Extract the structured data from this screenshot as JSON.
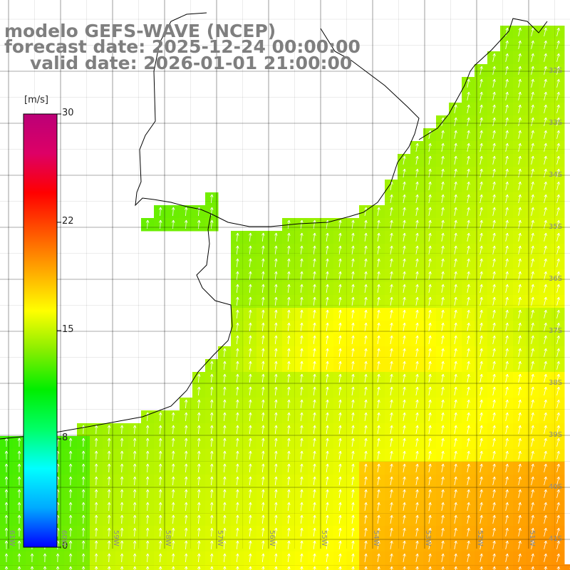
{
  "title": {
    "line1": "modelo GEFS-WAVE (NCEP)",
    "line2": "forecast date: 2025-12-24 00:00:00",
    "line3": "valid date: 2026-01-01 21:00:00"
  },
  "colorbar": {
    "unit": "[m/s]",
    "ticks": [
      "30",
      "22",
      "15",
      "8",
      "0"
    ],
    "tick_values": [
      30,
      22,
      15,
      8,
      0
    ],
    "range": [
      0,
      30
    ],
    "colors": [
      "#0000ff",
      "#00aaff",
      "#00ffff",
      "#00ff66",
      "#00ee00",
      "#88ee00",
      "#ffff00",
      "#ffaa00",
      "#ff5500",
      "#ff0000",
      "#dd0066",
      "#bb0077"
    ]
  },
  "lat_labels": [
    "32S",
    "33S",
    "34S",
    "35S",
    "36S",
    "37S",
    "38S",
    "39S",
    "40S",
    "41S"
  ],
  "lat_values": [
    -32,
    -33,
    -34,
    -35,
    -36,
    -37,
    -38,
    -39,
    -40,
    -41
  ],
  "lon_labels": [
    "61W",
    "60W",
    "59W",
    "58W",
    "57W",
    "56W",
    "55W",
    "54W",
    "53W",
    "52W",
    "51W"
  ],
  "lon_values": [
    -61,
    -60,
    -59,
    -58,
    -57,
    -56,
    -55,
    -54,
    -53,
    -52,
    -51
  ],
  "field": {
    "variable": "wind speed",
    "units": "m/s",
    "typical_speed_range": [
      10,
      19
    ],
    "wind_direction": "from south to southwest"
  },
  "colors": {
    "coastline": "#000000",
    "grid": "#000000",
    "arrow": "#ffffff",
    "title_text": "#7f7f7f",
    "land": "#ffffff"
  }
}
